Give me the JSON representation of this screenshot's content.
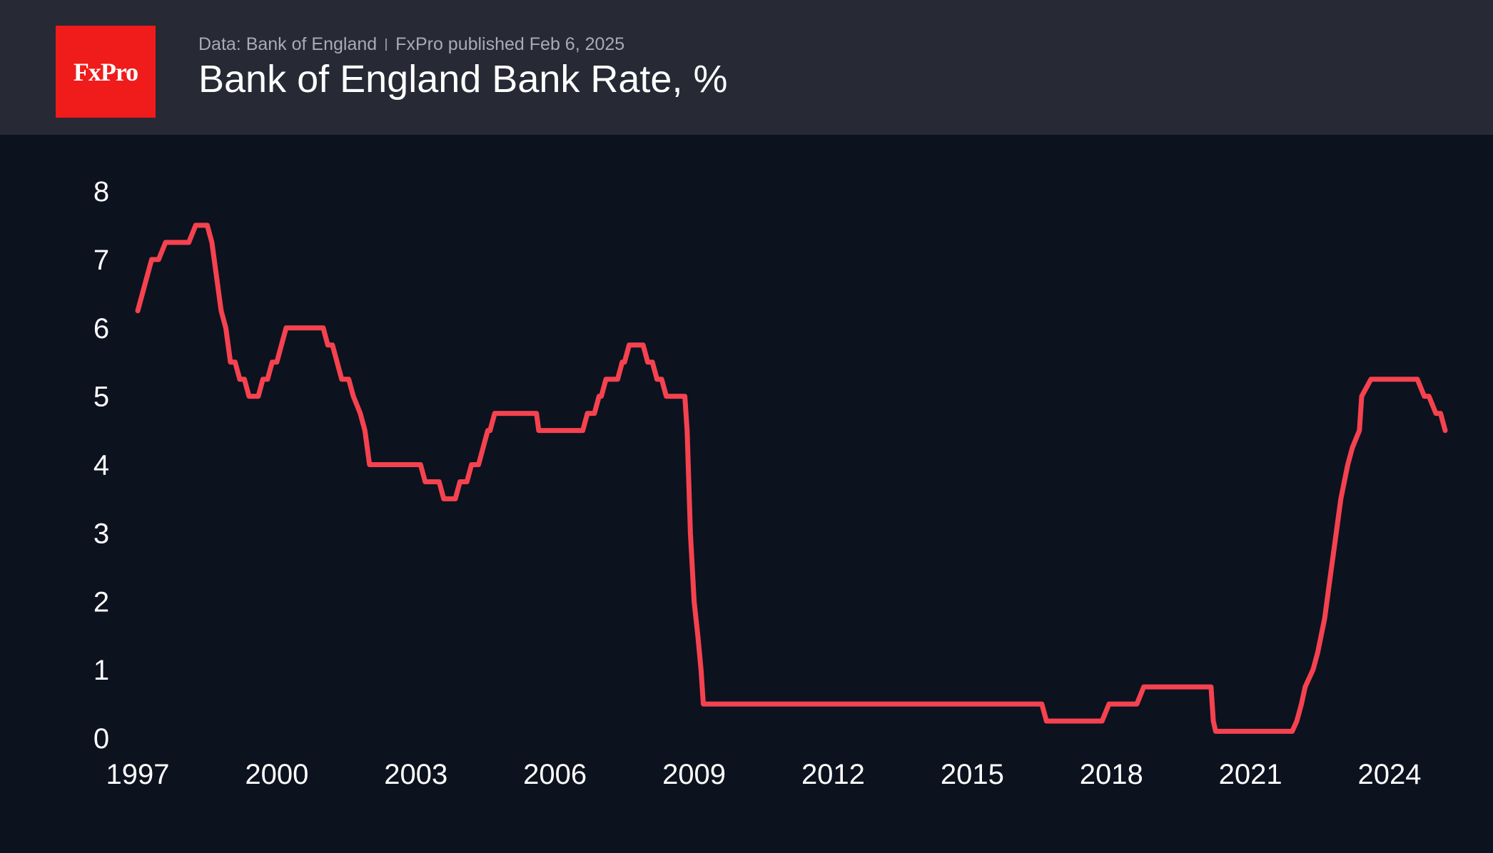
{
  "header": {
    "logo_text": "FxPro",
    "source": "Data: Bank of England",
    "published": "FxPro published Feb 6, 2025",
    "title": "Bank of England Bank Rate, %"
  },
  "colors": {
    "background": "#0d121f",
    "header_background": "#272935",
    "logo_background": "#f01b1b",
    "line": "#f5424f"
  },
  "chart_data": {
    "type": "line",
    "title": "Bank of England Bank Rate, %",
    "xlabel": "",
    "ylabel": "",
    "xlim": [
      1997,
      2025.6
    ],
    "ylim": [
      0,
      8
    ],
    "x_ticks": [
      "1997",
      "2000",
      "2003",
      "2006",
      "2009",
      "2012",
      "2015",
      "2018",
      "2021",
      "2024"
    ],
    "y_ticks": [
      "0",
      "1",
      "2",
      "3",
      "4",
      "5",
      "6",
      "7",
      "8"
    ],
    "grid": false,
    "series": [
      {
        "points": [
          [
            1997.0,
            6.25
          ],
          [
            1997.1,
            6.5
          ],
          [
            1997.2,
            6.75
          ],
          [
            1997.3,
            7.0
          ],
          [
            1997.45,
            7.0
          ],
          [
            1997.6,
            7.25
          ],
          [
            1998.0,
            7.25
          ],
          [
            1998.1,
            7.25
          ],
          [
            1998.25,
            7.5
          ],
          [
            1998.5,
            7.5
          ],
          [
            1998.6,
            7.25
          ],
          [
            1998.8,
            6.25
          ],
          [
            1998.9,
            6.0
          ],
          [
            1999.0,
            5.5
          ],
          [
            1999.1,
            5.5
          ],
          [
            1999.2,
            5.25
          ],
          [
            1999.3,
            5.25
          ],
          [
            1999.4,
            5.0
          ],
          [
            1999.6,
            5.0
          ],
          [
            1999.7,
            5.25
          ],
          [
            1999.8,
            5.25
          ],
          [
            1999.9,
            5.5
          ],
          [
            2000.0,
            5.5
          ],
          [
            2000.1,
            5.75
          ],
          [
            2000.2,
            6.0
          ],
          [
            2001.0,
            6.0
          ],
          [
            2001.1,
            5.75
          ],
          [
            2001.2,
            5.75
          ],
          [
            2001.3,
            5.5
          ],
          [
            2001.4,
            5.25
          ],
          [
            2001.55,
            5.25
          ],
          [
            2001.65,
            5.0
          ],
          [
            2001.8,
            4.75
          ],
          [
            2001.9,
            4.5
          ],
          [
            2002.0,
            4.0
          ],
          [
            2003.1,
            4.0
          ],
          [
            2003.2,
            3.75
          ],
          [
            2003.5,
            3.75
          ],
          [
            2003.6,
            3.5
          ],
          [
            2003.85,
            3.5
          ],
          [
            2003.95,
            3.75
          ],
          [
            2004.1,
            3.75
          ],
          [
            2004.2,
            4.0
          ],
          [
            2004.35,
            4.0
          ],
          [
            2004.45,
            4.25
          ],
          [
            2004.55,
            4.5
          ],
          [
            2004.6,
            4.5
          ],
          [
            2004.7,
            4.75
          ],
          [
            2005.6,
            4.75
          ],
          [
            2005.65,
            4.5
          ],
          [
            2006.6,
            4.5
          ],
          [
            2006.7,
            4.75
          ],
          [
            2006.85,
            4.75
          ],
          [
            2006.95,
            5.0
          ],
          [
            2007.0,
            5.0
          ],
          [
            2007.1,
            5.25
          ],
          [
            2007.35,
            5.25
          ],
          [
            2007.45,
            5.5
          ],
          [
            2007.5,
            5.5
          ],
          [
            2007.6,
            5.75
          ],
          [
            2007.9,
            5.75
          ],
          [
            2008.0,
            5.5
          ],
          [
            2008.1,
            5.5
          ],
          [
            2008.2,
            5.25
          ],
          [
            2008.3,
            5.25
          ],
          [
            2008.4,
            5.0
          ],
          [
            2008.8,
            5.0
          ],
          [
            2008.85,
            4.5
          ],
          [
            2008.92,
            3.0
          ],
          [
            2009.0,
            2.0
          ],
          [
            2009.08,
            1.5
          ],
          [
            2009.15,
            1.0
          ],
          [
            2009.2,
            0.5
          ],
          [
            2016.5,
            0.5
          ],
          [
            2016.6,
            0.25
          ],
          [
            2017.8,
            0.25
          ],
          [
            2017.95,
            0.5
          ],
          [
            2018.55,
            0.5
          ],
          [
            2018.7,
            0.75
          ],
          [
            2020.15,
            0.75
          ],
          [
            2020.2,
            0.25
          ],
          [
            2020.25,
            0.1
          ],
          [
            2021.9,
            0.1
          ],
          [
            2022.0,
            0.25
          ],
          [
            2022.1,
            0.5
          ],
          [
            2022.18,
            0.75
          ],
          [
            2022.35,
            1.0
          ],
          [
            2022.45,
            1.25
          ],
          [
            2022.6,
            1.75
          ],
          [
            2022.7,
            2.25
          ],
          [
            2022.85,
            3.0
          ],
          [
            2022.95,
            3.5
          ],
          [
            2023.1,
            4.0
          ],
          [
            2023.2,
            4.25
          ],
          [
            2023.35,
            4.5
          ],
          [
            2023.4,
            5.0
          ],
          [
            2023.6,
            5.25
          ],
          [
            2024.6,
            5.25
          ],
          [
            2024.75,
            5.0
          ],
          [
            2024.85,
            5.0
          ],
          [
            2025.0,
            4.75
          ],
          [
            2025.1,
            4.75
          ],
          [
            2025.2,
            4.5
          ]
        ]
      }
    ]
  }
}
